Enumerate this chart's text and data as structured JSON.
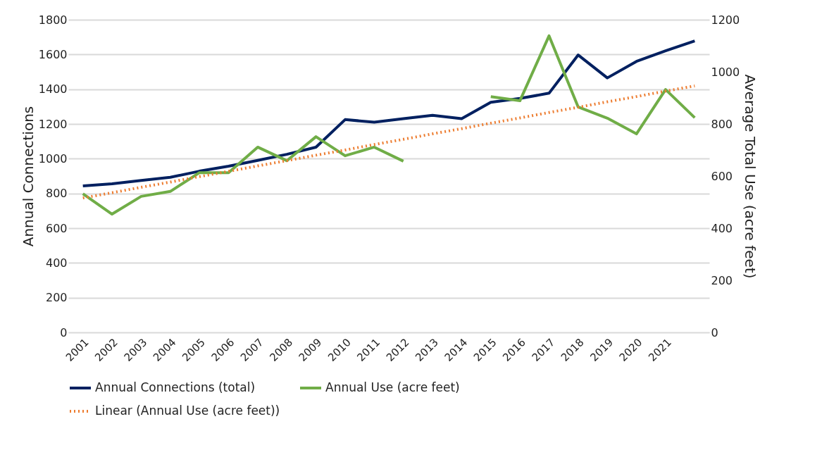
{
  "chart_data": {
    "type": "line",
    "categories": [
      "2001",
      "2002",
      "2003",
      "2004",
      "2005",
      "2006",
      "2007",
      "2008",
      "2009",
      "2010",
      "2011",
      "2012",
      "2013",
      "2014",
      "2015",
      "2016",
      "2017",
      "2018",
      "2019",
      "2020",
      "2021",
      null
    ],
    "ylabel": "Annual Connections",
    "y2label": "Average Total Use (acre feet)",
    "ylim": [
      0,
      1800
    ],
    "yticks": [
      0,
      200,
      400,
      600,
      800,
      1000,
      1200,
      1400,
      1600,
      1800
    ],
    "y2lim": [
      0,
      1200
    ],
    "y2ticks": [
      0,
      200,
      400,
      600,
      800,
      1000,
      1200
    ],
    "grid": "y",
    "legend": "bottom",
    "marker": "none",
    "series": [
      {
        "name": "Annual Connections (total)",
        "color": "#002060",
        "line_style": "solid",
        "values": [
          843,
          855,
          875,
          893,
          928,
          957,
          990,
          1025,
          1066,
          1225,
          1210,
          1230,
          1250,
          1230,
          1325,
          1347,
          1377,
          1597,
          1465,
          1560,
          1621,
          1678
        ]
      },
      {
        "name": "Annual Use (acre feet)",
        "color": "#70ad47",
        "line_style": "solid",
        "axis": "y2",
        "values": [
          532,
          454,
          522,
          541,
          613,
          613,
          711,
          659,
          751,
          678,
          711,
          657,
          null,
          null,
          905,
          889,
          1138,
          865,
          822,
          762,
          932,
          824
        ]
      },
      {
        "name": "Linear (Annual Use (acre feet))",
        "color": "#ed7d31",
        "line_style": "dotted",
        "axis": "y2",
        "values": [
          516,
          536,
          557,
          577,
          598,
          618,
          639,
          659,
          680,
          700,
          721,
          741,
          762,
          782,
          803,
          823,
          844,
          864,
          885,
          905,
          926,
          946
        ]
      }
    ]
  }
}
